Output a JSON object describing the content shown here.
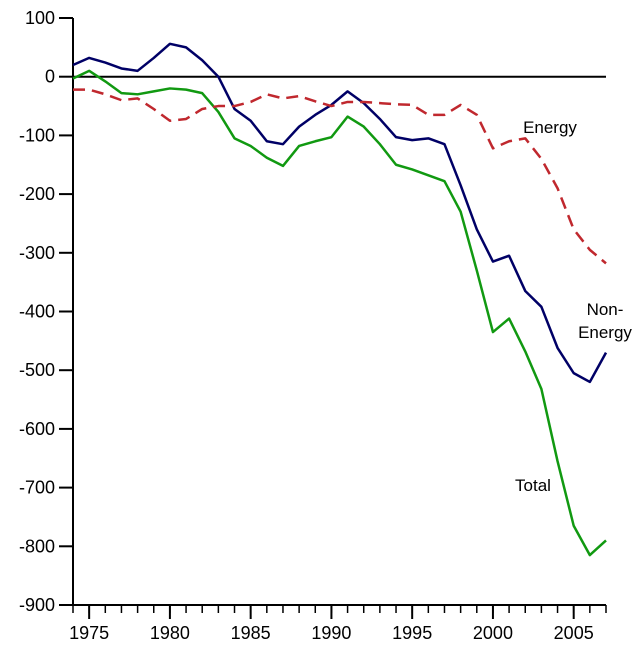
{
  "chart_data": {
    "type": "line",
    "x": [
      1974,
      1975,
      1976,
      1977,
      1978,
      1979,
      1980,
      1981,
      1982,
      1983,
      1984,
      1985,
      1986,
      1987,
      1988,
      1989,
      1990,
      1991,
      1992,
      1993,
      1994,
      1995,
      1996,
      1997,
      1998,
      1999,
      2000,
      2001,
      2002,
      2003,
      2004,
      2005,
      2006,
      2007
    ],
    "series": [
      {
        "name": "Non-Energy",
        "color": "#000066",
        "dash": false,
        "values": [
          20,
          32,
          24,
          14,
          10,
          32,
          56,
          50,
          28,
          0,
          -55,
          -75,
          -110,
          -115,
          -85,
          -65,
          -48,
          -25,
          -45,
          -72,
          -103,
          -108,
          -105,
          -115,
          -185,
          -260,
          -315,
          -305,
          -365,
          -392,
          -462,
          -505,
          -520,
          -470
        ]
      },
      {
        "name": "Total",
        "color": "#119911",
        "dash": false,
        "values": [
          -3,
          10,
          -8,
          -28,
          -30,
          -25,
          -20,
          -22,
          -28,
          -60,
          -105,
          -118,
          -138,
          -152,
          -118,
          -110,
          -103,
          -68,
          -85,
          -115,
          -150,
          -158,
          -168,
          -178,
          -230,
          -330,
          -435,
          -412,
          -468,
          -532,
          -655,
          -765,
          -815,
          -790
        ]
      },
      {
        "name": "Energy",
        "color": "#c0282e",
        "dash": true,
        "values": [
          -22,
          -22,
          -30,
          -40,
          -37,
          -55,
          -75,
          -72,
          -55,
          -50,
          -50,
          -43,
          -30,
          -37,
          -33,
          -42,
          -50,
          -43,
          -43,
          -45,
          -47,
          -48,
          -65,
          -65,
          -48,
          -65,
          -122,
          -110,
          -105,
          -140,
          -190,
          -260,
          -295,
          -318
        ]
      }
    ],
    "xlim": [
      1974,
      2007
    ],
    "xticks": [
      1975,
      1980,
      1985,
      1990,
      1995,
      2000,
      2005
    ],
    "xminorticks": [
      1974,
      1975,
      1976,
      1977,
      1978,
      1979,
      1980,
      1981,
      1982,
      1983,
      1984,
      1985,
      1986,
      1987,
      1988,
      1989,
      1990,
      1991,
      1992,
      1993,
      1994,
      1995,
      1996,
      1997,
      1998,
      1999,
      2000,
      2001,
      2002,
      2003,
      2004,
      2005,
      2006,
      2007
    ],
    "ylim": [
      -900,
      100
    ],
    "yticks": [
      100,
      0,
      -100,
      -200,
      -300,
      -400,
      -500,
      -600,
      -700,
      -800,
      -900
    ],
    "hlines": [
      0
    ],
    "grid": false
  }
}
